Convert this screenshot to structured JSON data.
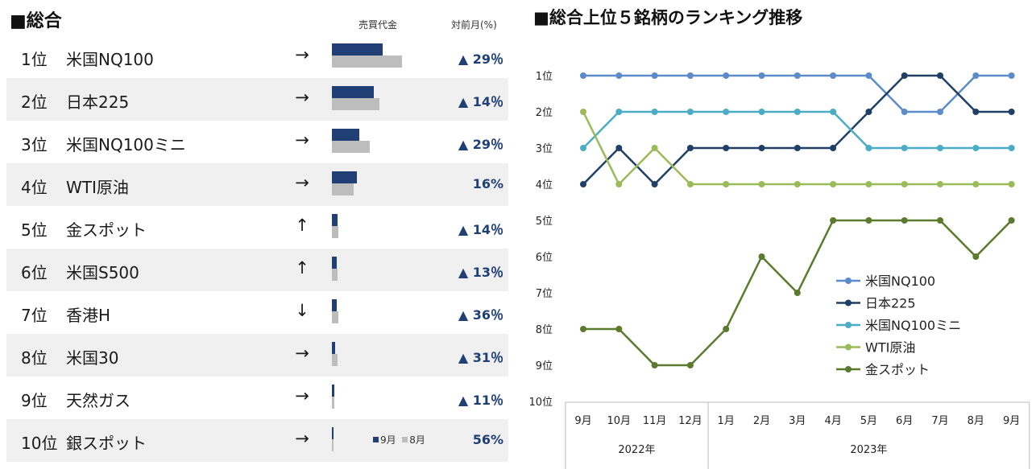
{
  "left_panel": {
    "title": "■総合",
    "headers": {
      "volume": "売買代金",
      "change": "対前月(%)"
    },
    "bar_legend": {
      "current": "9月",
      "previous": "8月"
    },
    "rows": [
      {
        "rank": "1位",
        "name": "米国NQ100",
        "trend": "→",
        "current": 0.56,
        "previous": 0.78,
        "change": "▲ 29％"
      },
      {
        "rank": "2位",
        "name": "日本225",
        "trend": "→",
        "current": 0.46,
        "previous": 0.53,
        "change": "▲ 14％"
      },
      {
        "rank": "3位",
        "name": "米国NQ100ミニ",
        "trend": "→",
        "current": 0.3,
        "previous": 0.42,
        "change": "▲ 29％"
      },
      {
        "rank": "4位",
        "name": "WTI原油",
        "trend": "→",
        "current": 0.28,
        "previous": 0.24,
        "change": "16%"
      },
      {
        "rank": "5位",
        "name": "金スポット",
        "trend": "↑",
        "current": 0.06,
        "previous": 0.07,
        "change": "▲ 14％"
      },
      {
        "rank": "6位",
        "name": "米国S500",
        "trend": "↑",
        "current": 0.05,
        "previous": 0.06,
        "change": "▲ 13％"
      },
      {
        "rank": "7位",
        "name": "香港H",
        "trend": "↓",
        "current": 0.05,
        "previous": 0.07,
        "change": "▲ 36％"
      },
      {
        "rank": "8位",
        "name": "米国30",
        "trend": "→",
        "current": 0.04,
        "previous": 0.06,
        "change": "▲ 31％"
      },
      {
        "rank": "9位",
        "name": "天然ガス",
        "trend": "→",
        "current": 0.03,
        "previous": 0.03,
        "change": "▲ 11％"
      },
      {
        "rank": "10位",
        "name": "銀スポット",
        "trend": "→",
        "current": 0.02,
        "previous": 0.01,
        "change": "56%"
      }
    ]
  },
  "chart_data": {
    "type": "line",
    "title": "■総合上位５銘柄のランキング推移",
    "categories": [
      "9月",
      "10月",
      "11月",
      "12月",
      "1月",
      "2月",
      "3月",
      "4月",
      "5月",
      "6月",
      "7月",
      "8月",
      "9月"
    ],
    "year_groups": [
      {
        "label": "2022年",
        "span": 4
      },
      {
        "label": "2023年",
        "span": 9
      }
    ],
    "y_tick_labels": [
      "1位",
      "2位",
      "3位",
      "4位",
      "5位",
      "6位",
      "7位",
      "8位",
      "9位",
      "10位"
    ],
    "ylim": [
      1,
      10
    ],
    "y_inverted": true,
    "legend_position": "center-right",
    "series": [
      {
        "name": "米国NQ100",
        "color": "#5b8cc9",
        "values": [
          1,
          1,
          1,
          1,
          1,
          1,
          1,
          1,
          1,
          2,
          2,
          1,
          1
        ]
      },
      {
        "name": "日本225",
        "color": "#1f3f66",
        "values": [
          4,
          3,
          4,
          3,
          3,
          3,
          3,
          3,
          2,
          1,
          1,
          2,
          2
        ]
      },
      {
        "name": "米国NQ100ミニ",
        "color": "#4bacc6",
        "values": [
          3,
          2,
          2,
          2,
          2,
          2,
          2,
          2,
          3,
          3,
          3,
          3,
          3
        ]
      },
      {
        "name": "WTI原油",
        "color": "#9bbb59",
        "values": [
          2,
          4,
          3,
          4,
          4,
          4,
          4,
          4,
          4,
          4,
          4,
          4,
          4
        ]
      },
      {
        "name": "金スポット",
        "color": "#5a7a2e",
        "values": [
          8,
          8,
          9,
          9,
          8,
          6,
          7,
          5,
          5,
          5,
          5,
          6,
          5
        ]
      }
    ]
  }
}
